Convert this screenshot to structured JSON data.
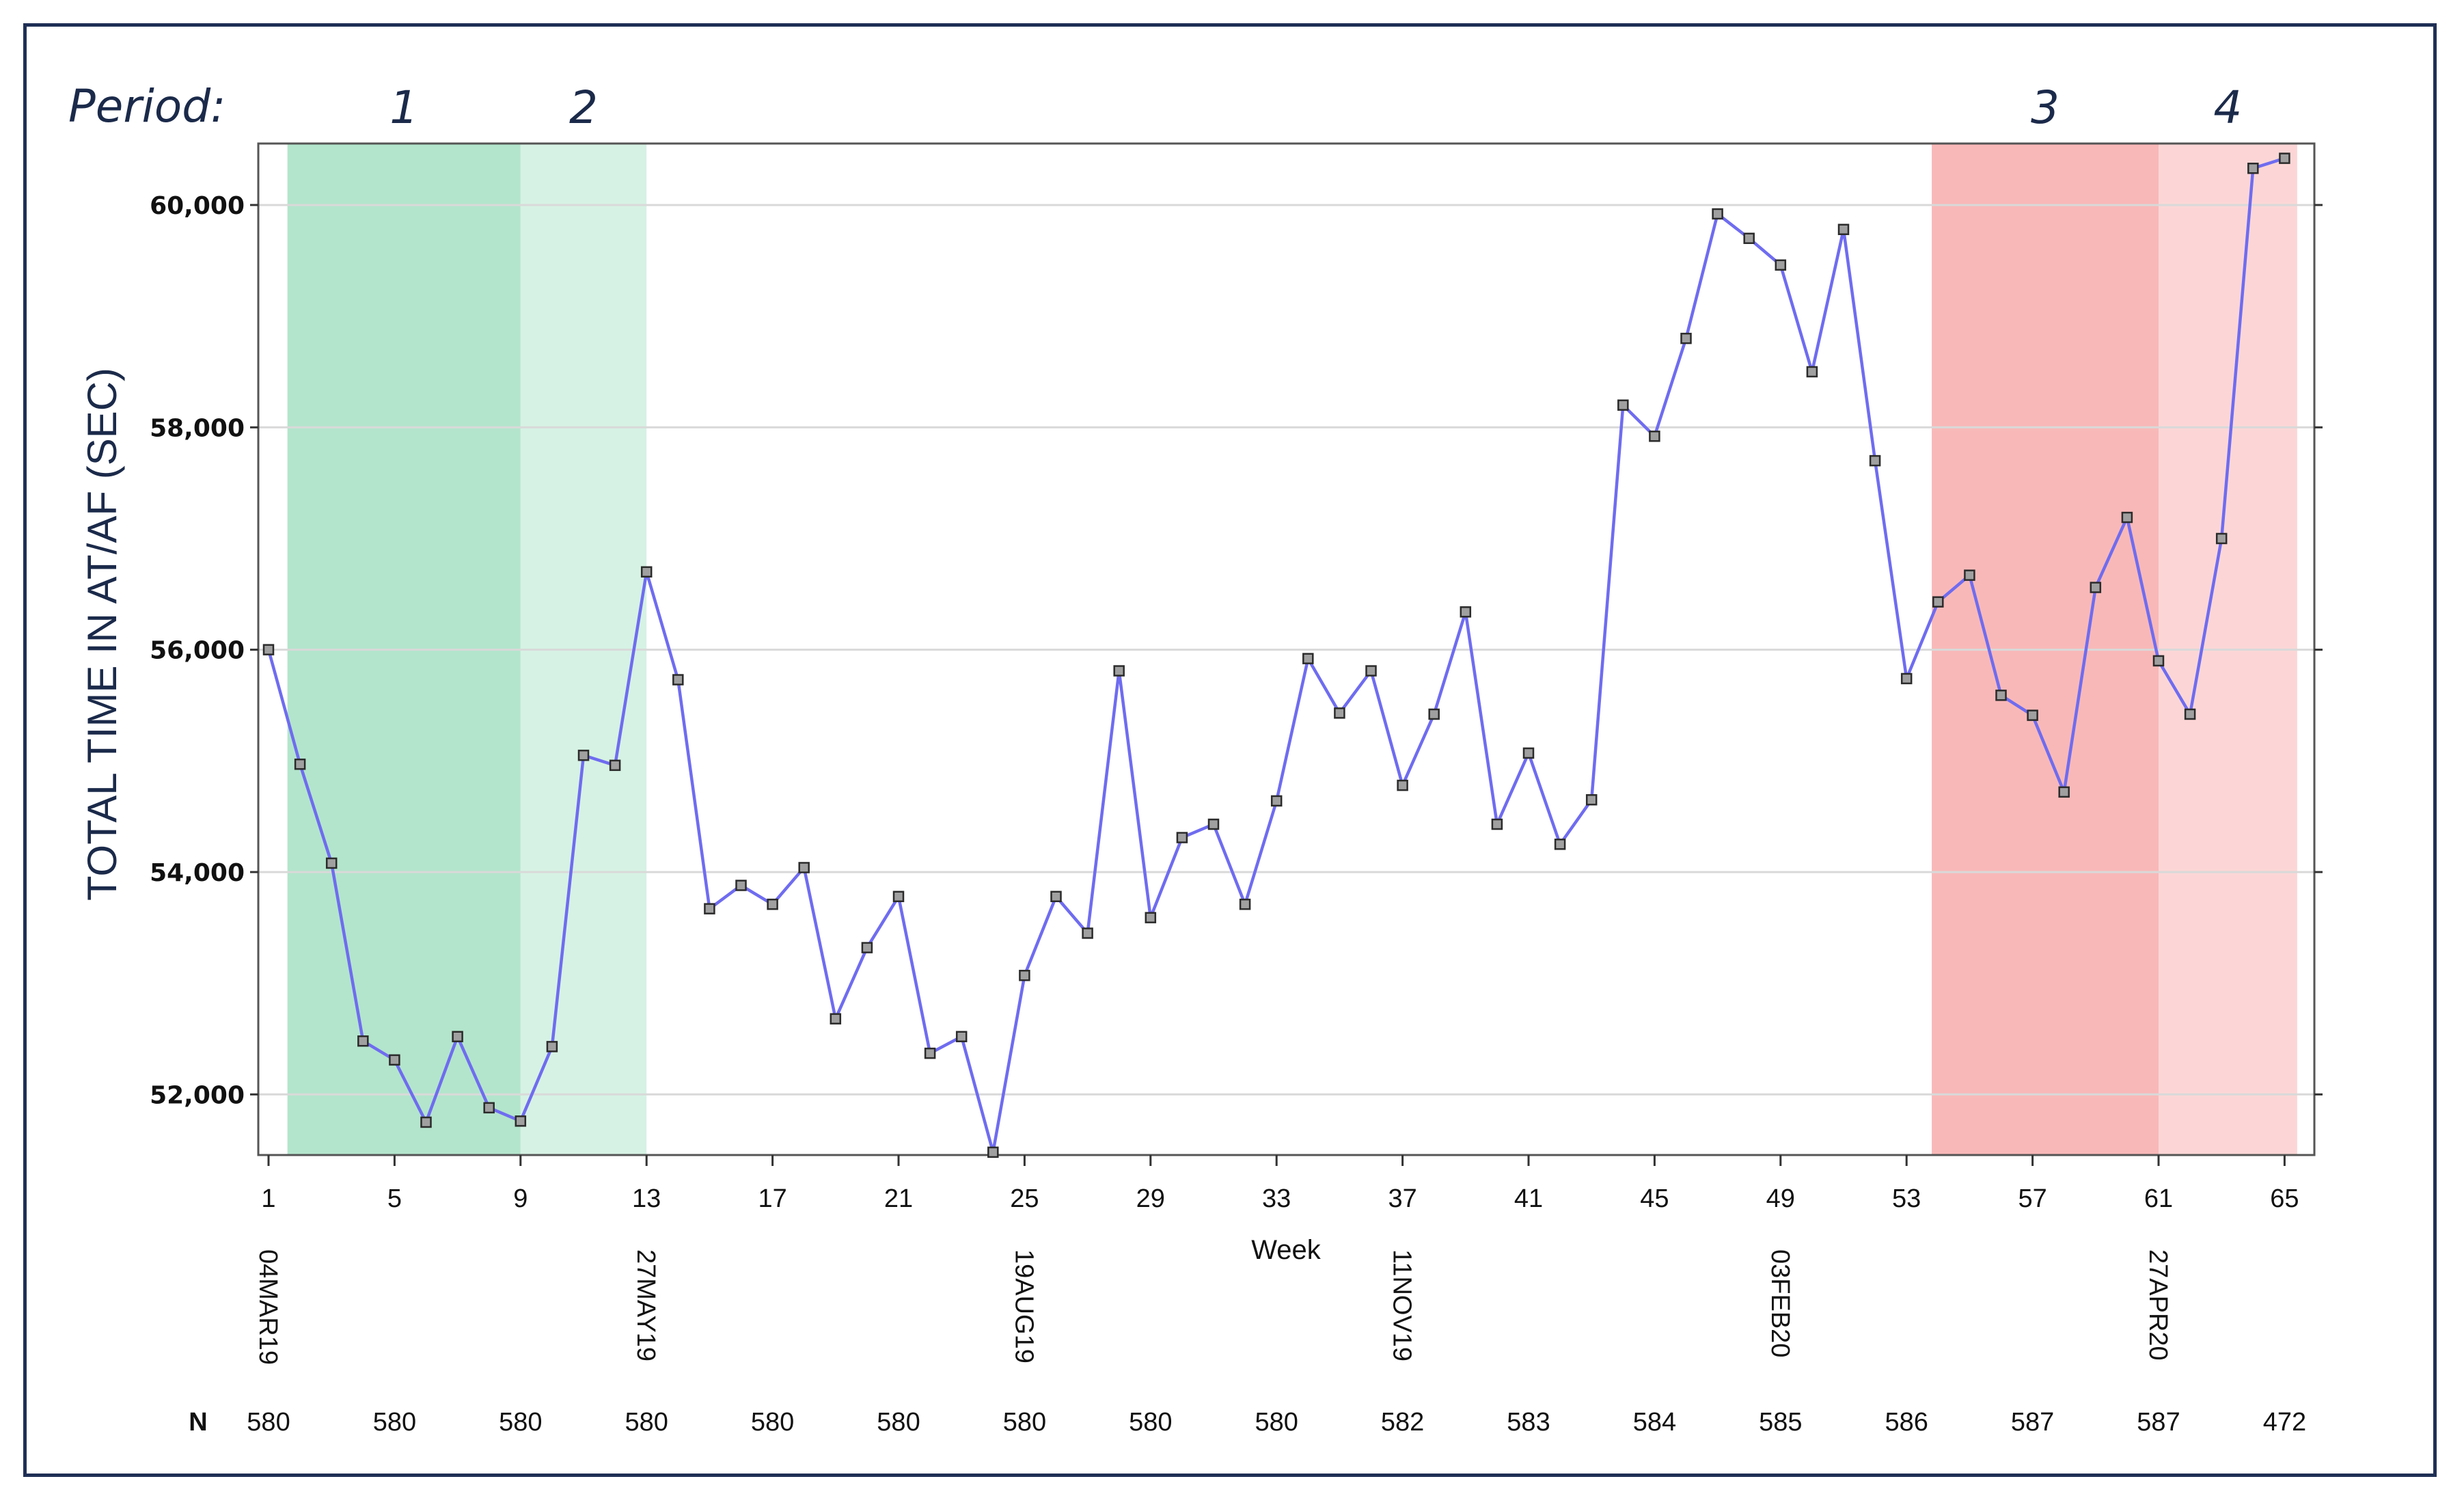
{
  "chart_data": {
    "type": "line",
    "title": "",
    "xlabel": "Week",
    "ylabel": "TOTAL TIME IN AT/AF (SEC)",
    "ylim": [
      51400,
      60500
    ],
    "xlim": [
      0.5,
      65.5
    ],
    "grid": "horizontal",
    "period_label": "Period:",
    "periods": [
      {
        "label": "1",
        "start": 1.6,
        "end": 9,
        "color": "#b3e5cc"
      },
      {
        "label": "2",
        "start": 9,
        "end": 13,
        "color": "#d6f2e4"
      },
      {
        "label": "3",
        "start": 53.8,
        "end": 61,
        "color": "#f9b8b8"
      },
      {
        "label": "4",
        "start": 61,
        "end": 65.4,
        "color": "#fcd6d6"
      }
    ],
    "x_ticks": [
      1,
      5,
      9,
      13,
      17,
      21,
      25,
      29,
      33,
      37,
      41,
      45,
      49,
      53,
      57,
      61,
      65
    ],
    "x_tick_labels": [
      "1",
      "5",
      "9",
      "13",
      "17",
      "21",
      "25",
      "29",
      "33",
      "37",
      "41",
      "45",
      "49",
      "53",
      "57",
      "61",
      "65"
    ],
    "y_ticks": [
      52000,
      54000,
      56000,
      58000,
      60000
    ],
    "y_tick_labels": [
      "52,000",
      "54,000",
      "56,000",
      "58,000",
      "60,000"
    ],
    "date_labels": [
      {
        "week": 1,
        "text": "04MAR19"
      },
      {
        "week": 13,
        "text": "27MAY19"
      },
      {
        "week": 25,
        "text": "19AUG19"
      },
      {
        "week": 37,
        "text": "11NOV19"
      },
      {
        "week": 49,
        "text": "03FEB20"
      },
      {
        "week": 61,
        "text": "27APR20"
      }
    ],
    "n_row_label": "N",
    "n_row": [
      {
        "week": 1,
        "text": "580"
      },
      {
        "week": 5,
        "text": "580"
      },
      {
        "week": 9,
        "text": "580"
      },
      {
        "week": 13,
        "text": "580"
      },
      {
        "week": 17,
        "text": "580"
      },
      {
        "week": 21,
        "text": "580"
      },
      {
        "week": 25,
        "text": "580"
      },
      {
        "week": 29,
        "text": "580"
      },
      {
        "week": 33,
        "text": "580"
      },
      {
        "week": 37,
        "text": "582"
      },
      {
        "week": 41,
        "text": "583"
      },
      {
        "week": 45,
        "text": "584"
      },
      {
        "week": 49,
        "text": "585"
      },
      {
        "week": 53,
        "text": "586"
      },
      {
        "week": 57,
        "text": "587"
      },
      {
        "week": 61,
        "text": "587"
      },
      {
        "week": 65,
        "text": "472"
      }
    ],
    "series": [
      {
        "color": "#6f6cf0",
        "x": [
          1,
          2,
          3,
          4,
          5,
          6,
          7,
          8,
          9,
          10,
          11,
          12,
          13,
          14,
          15,
          16,
          17,
          18,
          19,
          20,
          21,
          22,
          23,
          24,
          25,
          26,
          27,
          28,
          29,
          30,
          31,
          32,
          33,
          34,
          35,
          36,
          37,
          38,
          39,
          40,
          41,
          42,
          43,
          44,
          45,
          46,
          47,
          48,
          49,
          50,
          51,
          52,
          53,
          54,
          55,
          56,
          57,
          58,
          59,
          60,
          61,
          62,
          63,
          64,
          65
        ],
        "values": [
          56000,
          54970,
          54080,
          52480,
          52310,
          51750,
          52520,
          51880,
          51760,
          52430,
          55050,
          54960,
          56700,
          55730,
          53670,
          53880,
          53710,
          54040,
          52680,
          53320,
          53780,
          52370,
          52520,
          51480,
          53070,
          53780,
          53450,
          55810,
          53590,
          54310,
          54430,
          53710,
          54640,
          55920,
          55430,
          55810,
          54780,
          55420,
          56340,
          54430,
          55070,
          54250,
          54650,
          58200,
          57920,
          58800,
          59920,
          59700,
          59460,
          58500,
          59780,
          57700,
          55740,
          56430,
          56670,
          55590,
          55410,
          54720,
          56560,
          57190,
          55900,
          55420,
          57000,
          60330,
          60420
        ]
      }
    ]
  }
}
